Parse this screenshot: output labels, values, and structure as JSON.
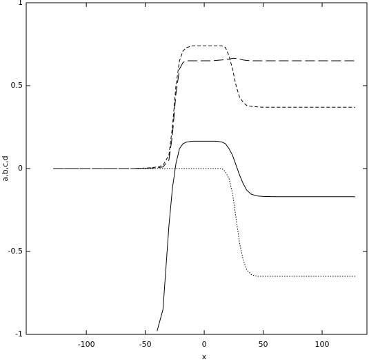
{
  "chart_data": {
    "type": "line",
    "x_label": "x",
    "y_label": "a,b,c,d",
    "x": [
      -128,
      -60,
      -45,
      -40,
      -35,
      -30,
      -27,
      -24,
      -21,
      -18,
      -15,
      -10,
      -5,
      0,
      5,
      10,
      15,
      18,
      21,
      24,
      27,
      30,
      33,
      36,
      40,
      45,
      50,
      60,
      128
    ],
    "series": [
      {
        "color": "#000000",
        "dash": "solid",
        "values": [
          null,
          null,
          null,
          -0.98,
          -0.85,
          -0.35,
          -0.12,
          0.03,
          0.12,
          0.15,
          0.16,
          0.165,
          0.165,
          0.165,
          0.165,
          0.165,
          0.16,
          0.15,
          0.12,
          0.08,
          0.02,
          -0.04,
          -0.09,
          -0.13,
          -0.155,
          -0.165,
          -0.168,
          -0.17,
          -0.17
        ]
      },
      {
        "color": "#000000",
        "dash": "dotted",
        "values": [
          0,
          0,
          0,
          0,
          0,
          0,
          0,
          0,
          0,
          0,
          0,
          0,
          0,
          0,
          0,
          0,
          0,
          -0.02,
          -0.06,
          -0.15,
          -0.3,
          -0.45,
          -0.55,
          -0.61,
          -0.64,
          -0.65,
          -0.65,
          -0.65,
          -0.65
        ]
      },
      {
        "color": "#000000",
        "dash": "dashed",
        "values": [
          0,
          0,
          0.005,
          0.01,
          0.02,
          0.08,
          0.25,
          0.5,
          0.65,
          0.71,
          0.73,
          0.74,
          0.74,
          0.74,
          0.74,
          0.74,
          0.74,
          0.73,
          0.68,
          0.6,
          0.5,
          0.43,
          0.4,
          0.38,
          0.375,
          0.372,
          0.37,
          0.37,
          0.37
        ]
      },
      {
        "color": "#000000",
        "dash": "longdash",
        "values": [
          0,
          0,
          0.003,
          0.005,
          0.01,
          0.05,
          0.2,
          0.45,
          0.6,
          0.64,
          0.65,
          0.65,
          0.65,
          0.65,
          0.65,
          0.652,
          0.655,
          0.658,
          0.66,
          0.665,
          0.665,
          0.66,
          0.655,
          0.652,
          0.65,
          0.65,
          0.65,
          0.65,
          0.65
        ]
      }
    ],
    "xlim": [
      -151,
      138
    ],
    "ylim": [
      -1,
      1
    ],
    "xticks": [
      -100,
      -50,
      0,
      50,
      100
    ],
    "yticks": [
      -1,
      -0.5,
      0,
      0.5,
      1
    ]
  }
}
